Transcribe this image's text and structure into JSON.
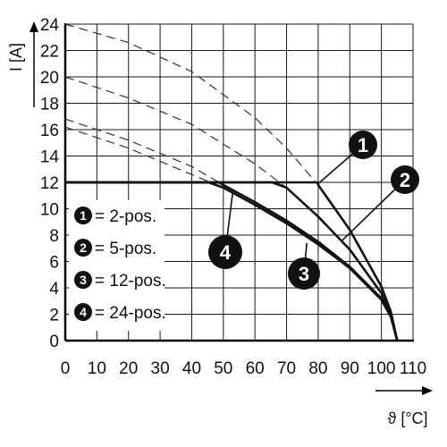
{
  "chart_data": {
    "type": "line",
    "xlabel": "ϑ [°C]",
    "ylabel": "I [A]",
    "xlim": [
      0,
      110
    ],
    "ylim": [
      0,
      24
    ],
    "x_ticks": [
      0,
      10,
      20,
      30,
      40,
      50,
      60,
      70,
      80,
      90,
      100,
      110
    ],
    "y_ticks": [
      0,
      2,
      4,
      6,
      8,
      10,
      12,
      14,
      16,
      18,
      20,
      22,
      24
    ],
    "grid": true,
    "legend": [
      {
        "marker": "1",
        "label": "= 2-pos."
      },
      {
        "marker": "2",
        "label": "= 5-pos."
      },
      {
        "marker": "3",
        "label": "= 12-pos."
      },
      {
        "marker": "4",
        "label": "= 24-pos."
      }
    ],
    "current_limit": 12,
    "series": [
      {
        "marker": "1",
        "curve": {
          "x": [
            0,
            20,
            40,
            60,
            70,
            80,
            90,
            100,
            103,
            105
          ],
          "y": [
            24,
            22.6,
            20.4,
            16.9,
            14.6,
            11.8,
            8.4,
            4.1,
            2.2,
            0
          ]
        },
        "used": {
          "x": [
            0,
            79.8,
            80,
            90,
            100,
            103,
            105
          ],
          "y": [
            12,
            12,
            11.8,
            8.4,
            4.1,
            2.2,
            0
          ]
        }
      },
      {
        "marker": "2",
        "curve": {
          "x": [
            0,
            20,
            40,
            60,
            70,
            80,
            90,
            100,
            103,
            105
          ],
          "y": [
            20,
            18.4,
            16.4,
            13.4,
            11.6,
            9.4,
            6.9,
            3.6,
            2,
            0
          ]
        },
        "used": {
          "x": [
            0,
            65.4,
            70,
            80,
            90,
            100,
            103,
            105
          ],
          "y": [
            12,
            12,
            11.6,
            9.4,
            6.9,
            3.6,
            2,
            0
          ]
        }
      },
      {
        "marker": "3",
        "curve": {
          "x": [
            0,
            20,
            40,
            50,
            60,
            70,
            80,
            90,
            100,
            103,
            105
          ],
          "y": [
            16.8,
            15.2,
            13.2,
            11.8,
            10.5,
            9.1,
            7.5,
            5.6,
            3.2,
            1.9,
            0
          ]
        },
        "used": {
          "x": [
            0,
            48.6,
            50,
            60,
            70,
            80,
            90,
            100,
            103,
            105
          ],
          "y": [
            12,
            12,
            11.8,
            10.5,
            9.1,
            7.5,
            5.6,
            3.2,
            1.9,
            0
          ]
        }
      },
      {
        "marker": "4",
        "curve": {
          "x": [
            0,
            20,
            40,
            50,
            60,
            70,
            80,
            90,
            100,
            103,
            105
          ],
          "y": [
            16.2,
            14.6,
            12.6,
            11.6,
            10.3,
            8.9,
            7.3,
            5.5,
            3.1,
            1.8,
            0
          ]
        },
        "used": {
          "x": [
            0,
            45.3,
            50,
            60,
            70,
            80,
            90,
            100,
            103,
            105
          ],
          "y": [
            12,
            12,
            11.6,
            10.3,
            8.9,
            7.3,
            5.5,
            3.1,
            1.8,
            0
          ]
        }
      }
    ],
    "callouts": [
      {
        "marker": "1",
        "at": [
          80,
          11.9
        ]
      },
      {
        "marker": "2",
        "at": [
          87.6,
          7.6
        ]
      },
      {
        "marker": "3",
        "at": [
          76.4,
          7.4
        ]
      },
      {
        "marker": "4",
        "at": [
          53,
          11.3
        ]
      }
    ]
  }
}
